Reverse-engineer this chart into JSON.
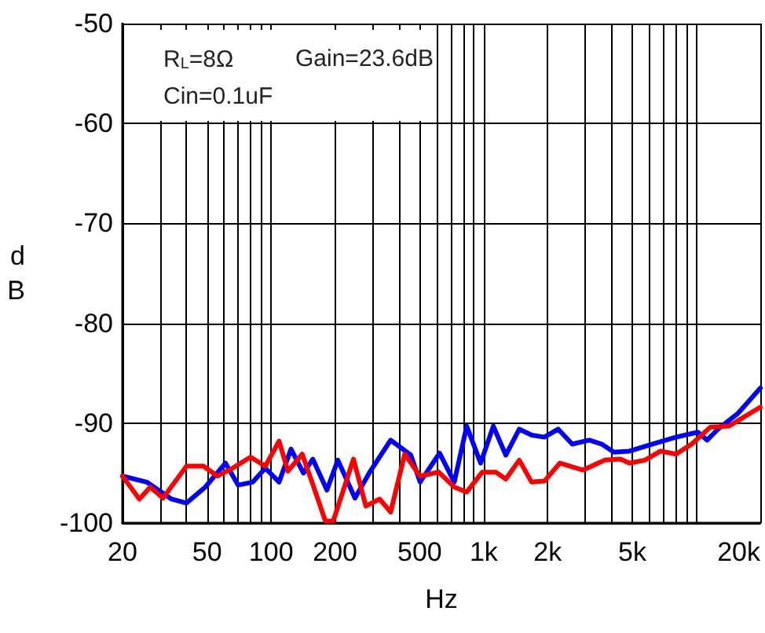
{
  "chart_data": {
    "type": "line",
    "xlabel": "Hz",
    "ylabel": "dB",
    "log": "x",
    "grid": true,
    "annotations": [
      "R$_{L}$=8Ω",
      "Gain=23.6dB",
      "Cin=0.1uF"
    ],
    "xlim": [
      20,
      20000
    ],
    "ylim": [
      -100,
      -50
    ],
    "xticks": [
      20,
      {
        "value": 30,
        "label": null
      },
      {
        "value": 40,
        "label": null
      },
      50,
      {
        "value": 60,
        "label": null
      },
      {
        "value": 70,
        "label": null
      },
      {
        "value": 80,
        "label": null
      },
      {
        "value": 90,
        "label": null
      },
      100,
      200,
      {
        "value": 300,
        "label": null
      },
      {
        "value": 400,
        "label": null
      },
      500,
      {
        "value": 600,
        "label": null
      },
      {
        "value": 700,
        "label": null
      },
      {
        "value": 800,
        "label": null
      },
      {
        "value": 900,
        "label": null
      },
      {
        "value": 1000,
        "label": "1k"
      },
      {
        "value": 2000,
        "label": "2k"
      },
      {
        "value": 3000,
        "label": null
      },
      {
        "value": 4000,
        "label": null
      },
      {
        "value": 5000,
        "label": "5k"
      },
      {
        "value": 6000,
        "label": null
      },
      {
        "value": 7000,
        "label": null
      },
      {
        "value": 8000,
        "label": null
      },
      {
        "value": 9000,
        "label": null
      },
      {
        "value": 10000,
        "label": null
      },
      {
        "value": 20000,
        "label": "20k"
      }
    ],
    "yticks": [
      -100,
      -90,
      -80,
      -70,
      -60,
      -50
    ],
    "series": [
      {
        "color": "#0000ff",
        "x": [
          20,
          26,
          34,
          40,
          49,
          61,
          70,
          82,
          94,
          109,
          124,
          142,
          157,
          183,
          206,
          248,
          293,
          365,
          454,
          502,
          620,
          727,
          832,
          967,
          1110,
          1270,
          1470,
          1680,
          1930,
          2240,
          2610,
          3140,
          3590,
          4100,
          4850,
          6460,
          8030,
          10170,
          11250,
          12650,
          15740,
          20000
        ],
        "values": [
          -95.3,
          -95.9,
          -97.6,
          -98,
          -96.4,
          -94,
          -96.2,
          -95.9,
          -94.5,
          -95.9,
          -92.6,
          -95,
          -93.6,
          -96.7,
          -93.7,
          -97.5,
          -94.8,
          -91.7,
          -93.2,
          -95.9,
          -93,
          -95.9,
          -90.3,
          -94,
          -90.3,
          -93.2,
          -90.6,
          -91.2,
          -91.4,
          -90.6,
          -92.1,
          -91.7,
          -92.1,
          -92.9,
          -92.8,
          -92,
          -91.4,
          -90.9,
          -91.7,
          -90.6,
          -89,
          -86.5
        ]
      },
      {
        "color": "#ff0000",
        "x": [
          20,
          24,
          27,
          31,
          40,
          48,
          56,
          66,
          80,
          94,
          109,
          120,
          140,
          157,
          180,
          196,
          244,
          279,
          324,
          365,
          425,
          502,
          614,
          727,
          832,
          984,
          1140,
          1270,
          1470,
          1680,
          1930,
          2280,
          2930,
          3710,
          4390,
          4850,
          5740,
          6790,
          8030,
          9510,
          11640,
          14220,
          20000
        ],
        "values": [
          -95.3,
          -97.6,
          -96.4,
          -97.5,
          -94.3,
          -94.3,
          -95.3,
          -94.5,
          -93.4,
          -94.3,
          -91.8,
          -94.8,
          -93.1,
          -96.1,
          -99.8,
          -99.8,
          -93.6,
          -98.3,
          -97.6,
          -98.9,
          -93.1,
          -95.3,
          -94.9,
          -96.4,
          -96.9,
          -94.9,
          -94.9,
          -95.6,
          -93.7,
          -95.9,
          -95.8,
          -94,
          -94.7,
          -93.7,
          -93.6,
          -94,
          -93.7,
          -92.8,
          -93.1,
          -92.1,
          -90.4,
          -90.3,
          -88.4
        ]
      }
    ]
  }
}
